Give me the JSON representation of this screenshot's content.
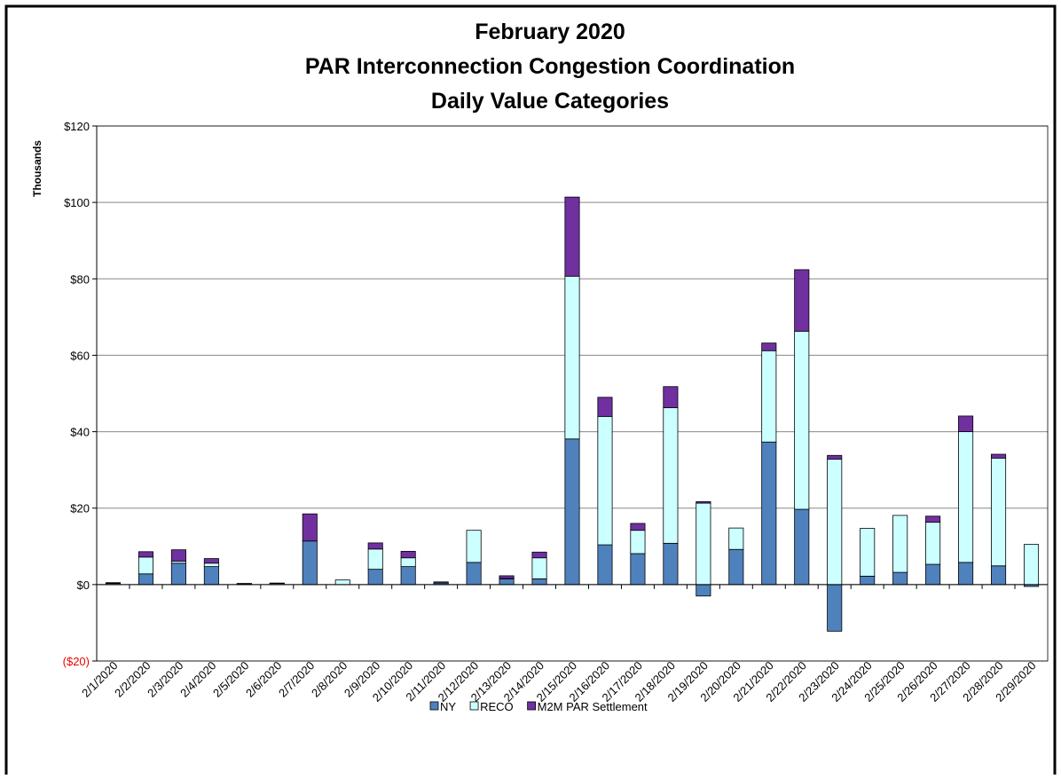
{
  "chart_data": {
    "type": "stacked_bar",
    "title": [
      "February 2020",
      "PAR Interconnection Congestion Coordination",
      "Daily Value Categories"
    ],
    "y_label": "Thousands",
    "categories": [
      "2/1/2020",
      "2/2/2020",
      "2/3/2020",
      "2/4/2020",
      "2/5/2020",
      "2/6/2020",
      "2/7/2020",
      "2/8/2020",
      "2/9/2020",
      "2/10/2020",
      "2/11/2020",
      "2/12/2020",
      "2/13/2020",
      "2/14/2020",
      "2/15/2020",
      "2/16/2020",
      "2/17/2020",
      "2/18/2020",
      "2/19/2020",
      "2/20/2020",
      "2/21/2020",
      "2/22/2020",
      "2/23/2020",
      "2/24/2020",
      "2/25/2020",
      "2/26/2020",
      "2/27/2020",
      "2/28/2020",
      "2/29/2020"
    ],
    "series": [
      {
        "name": "NY",
        "color": "#4f81bd",
        "values": [
          0.3,
          2.8,
          5.6,
          4.7,
          0.2,
          0.3,
          11.4,
          0,
          4.0,
          4.7,
          0.4,
          5.8,
          1.5,
          1.5,
          38.1,
          10.4,
          8.1,
          10.8,
          -3.0,
          9.2,
          37.3,
          19.7,
          -12.2,
          2.2,
          3.2,
          5.3,
          5.8,
          4.9,
          -0.5
        ]
      },
      {
        "name": "RECO",
        "color": "#ccffff",
        "values": [
          0.1,
          4.4,
          0.5,
          0.9,
          0.1,
          0,
          0,
          1.2,
          5.3,
          2.3,
          0,
          8.4,
          0.1,
          5.5,
          42.6,
          33.6,
          6.1,
          35.5,
          21.3,
          5.6,
          23.9,
          46.6,
          32.8,
          12.5,
          14.9,
          11.0,
          34.2,
          28.2,
          10.5
        ]
      },
      {
        "name": "M2M PAR Settlement",
        "color": "#7030a0",
        "values": [
          0.1,
          1.4,
          3.0,
          1.2,
          0,
          0.1,
          7.1,
          0,
          1.6,
          1.7,
          0.3,
          0,
          0.7,
          1.5,
          20.7,
          5.0,
          1.8,
          5.5,
          0.4,
          0,
          2.0,
          16.1,
          1.0,
          0,
          0,
          1.6,
          4.1,
          1.0,
          0
        ]
      }
    ],
    "ylim": [
      -20,
      120
    ],
    "yticks": [
      {
        "value": -20,
        "label": "($20)"
      },
      {
        "value": 0,
        "label": "$0"
      },
      {
        "value": 20,
        "label": "$20"
      },
      {
        "value": 40,
        "label": "$40"
      },
      {
        "value": 60,
        "label": "$60"
      },
      {
        "value": 80,
        "label": "$80"
      },
      {
        "value": 100,
        "label": "$100"
      },
      {
        "value": 120,
        "label": "$120"
      }
    ],
    "grid": true,
    "legend": "bottom"
  }
}
